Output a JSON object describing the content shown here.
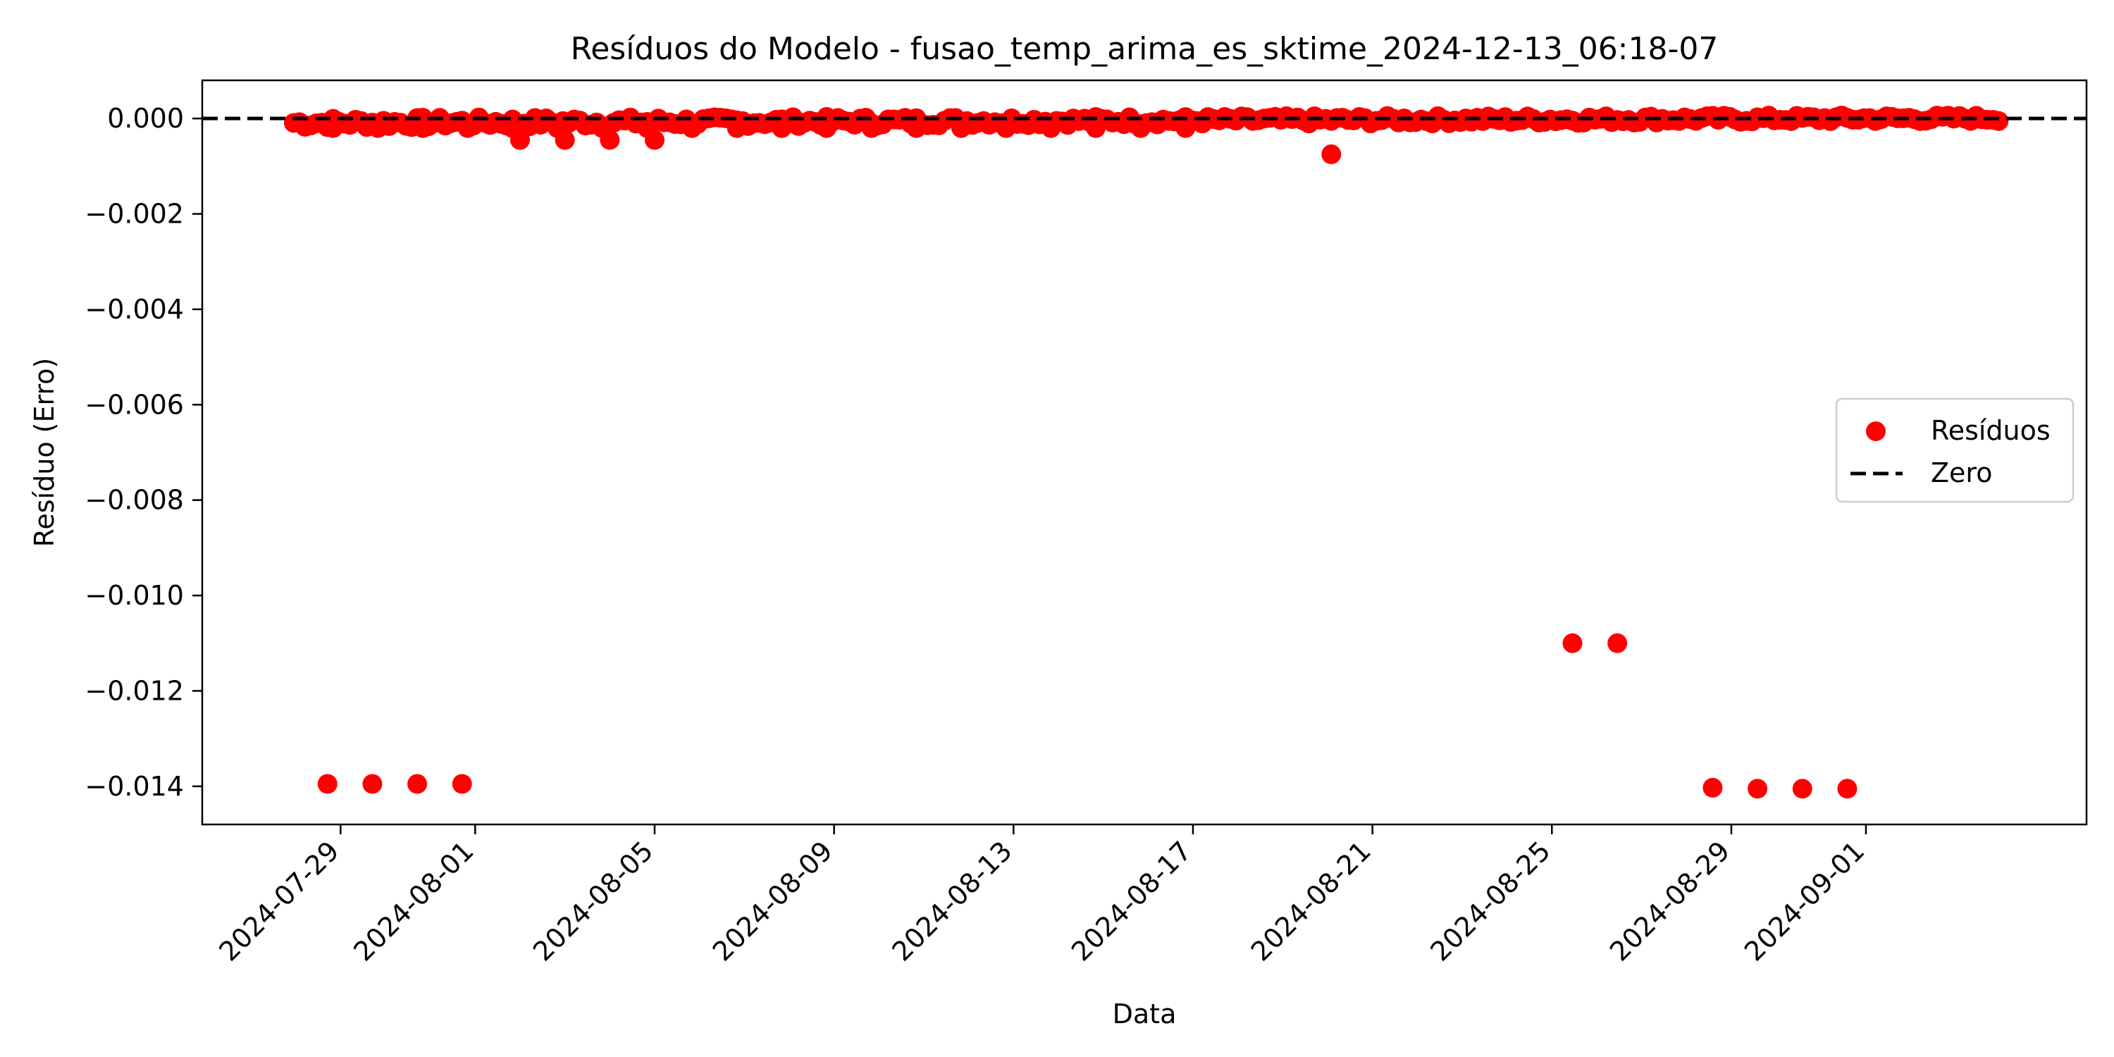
{
  "chart_data": {
    "type": "scatter",
    "title": "Resíduos do Modelo - fusao_temp_arima_es_sktime_2024-12-13_06:18-07",
    "xlabel": "Data",
    "ylabel": "Resíduo (Erro)",
    "x_type": "date",
    "xlim": [
      "2024-07-25T22:00",
      "2024-09-05T22:00"
    ],
    "ylim": [
      -0.0148,
      0.0008
    ],
    "x_ticks": [
      "2024-07-29",
      "2024-08-01",
      "2024-08-05",
      "2024-08-09",
      "2024-08-13",
      "2024-08-17",
      "2024-08-21",
      "2024-08-25",
      "2024-08-29",
      "2024-09-01"
    ],
    "y_ticks": [
      0.0,
      -0.002,
      -0.004,
      -0.006,
      -0.008,
      -0.01,
      -0.012,
      -0.014
    ],
    "y_tick_labels": [
      "0.000",
      "−0.002",
      "−0.004",
      "−0.006",
      "−0.008",
      "−0.010",
      "−0.012",
      "−0.014"
    ],
    "grid": false,
    "legend_position": "center-right",
    "series": [
      {
        "name": "Resíduos",
        "kind": "scatter",
        "color": "#ff0000",
        "points": [
          {
            "x": "2024-07-28T17:00",
            "y": -0.01395
          },
          {
            "x": "2024-07-29T17:00",
            "y": -0.01395
          },
          {
            "x": "2024-07-30T17:00",
            "y": -0.01395
          },
          {
            "x": "2024-07-31T17:00",
            "y": -0.01395
          },
          {
            "x": "2024-08-20T02:00",
            "y": -0.00075
          },
          {
            "x": "2024-08-25T11:00",
            "y": -0.011
          },
          {
            "x": "2024-08-26T11:00",
            "y": -0.011
          },
          {
            "x": "2024-08-28T14:00",
            "y": -0.01403
          },
          {
            "x": "2024-08-29T14:00",
            "y": -0.01405
          },
          {
            "x": "2024-08-30T14:00",
            "y": -0.01405
          },
          {
            "x": "2024-08-31T14:00",
            "y": -0.01405
          },
          {
            "x": "2024-08-02T00:00",
            "y": -0.00045
          },
          {
            "x": "2024-08-03T00:00",
            "y": -0.00045
          },
          {
            "x": "2024-08-04T00:00",
            "y": -0.00045
          },
          {
            "x": "2024-08-05T00:00",
            "y": -0.00045
          }
        ],
        "dense_band": {
          "description_of_points": "hourly residuals clustered near zero",
          "x_start": "2024-07-27T23:00",
          "x_end": "2024-09-03T23:00",
          "y_range": [
            -0.0002,
            6e-05
          ]
        }
      },
      {
        "name": "Zero",
        "kind": "hline",
        "y": 0.0,
        "color": "#000000",
        "style": "dashed"
      }
    ]
  }
}
